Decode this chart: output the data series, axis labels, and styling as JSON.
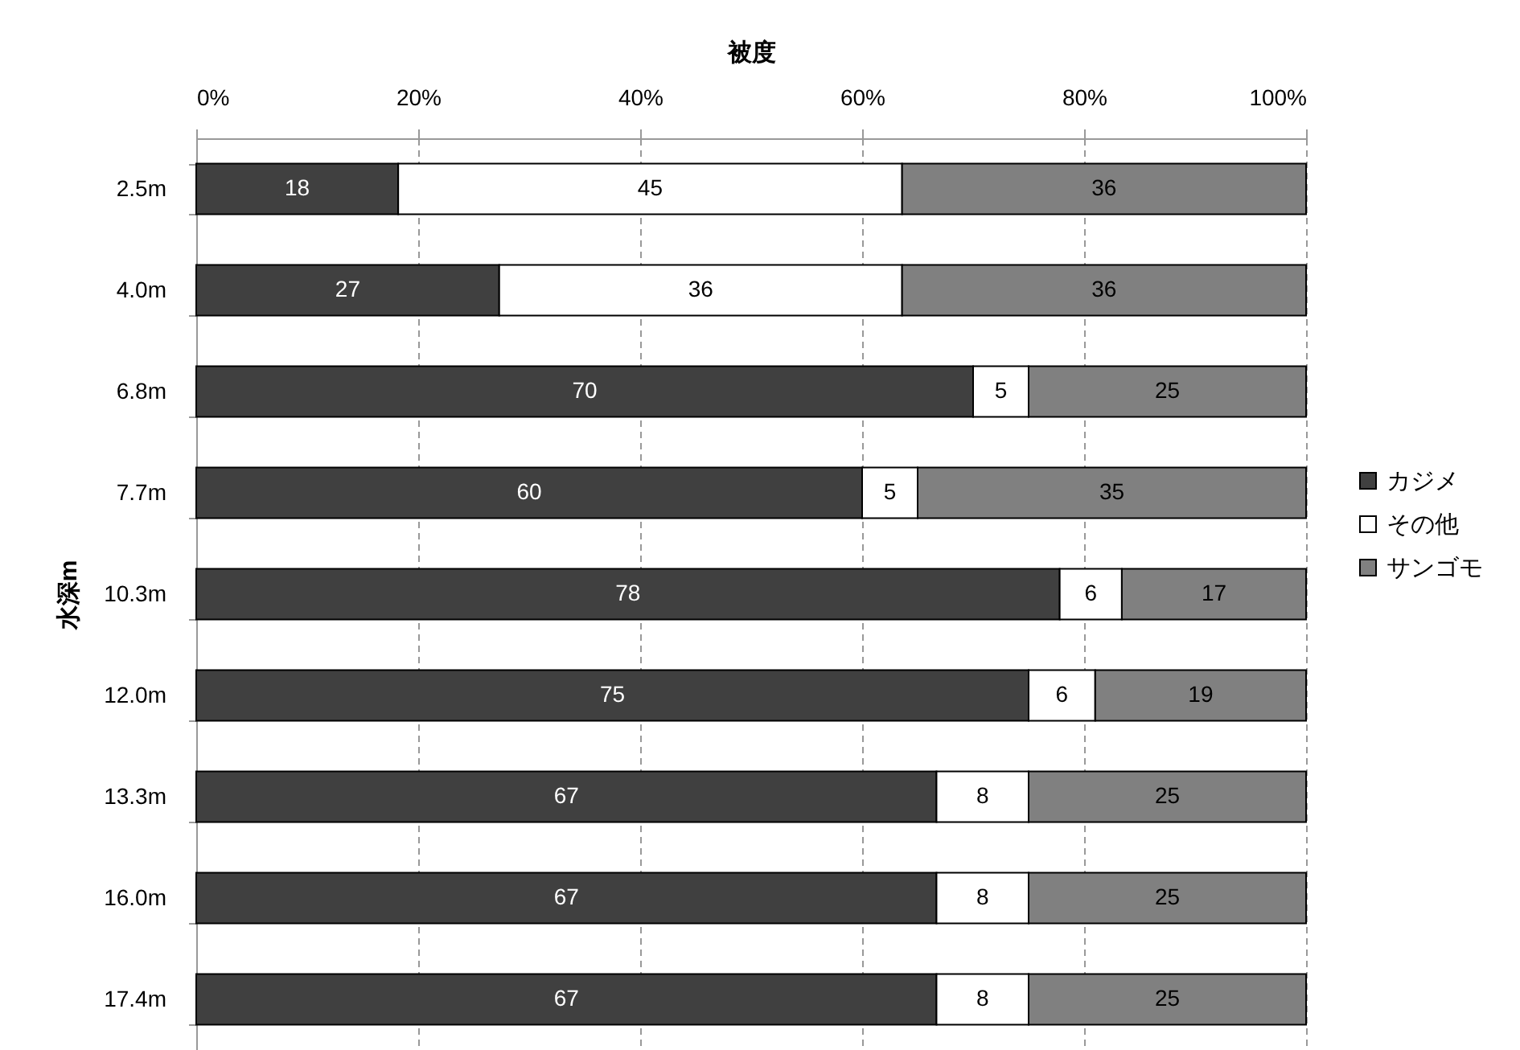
{
  "chart_data": {
    "type": "bar",
    "orientation": "horizontal",
    "stacked": true,
    "xlabel": "被度",
    "ylabel": "水深m",
    "categories": [
      "2.5m",
      "4.0m",
      "6.8m",
      "7.7m",
      "10.3m",
      "12.0m",
      "13.3m",
      "16.0m",
      "17.4m"
    ],
    "series": [
      {
        "name": "カジメ",
        "color": "#404040",
        "values": [
          18.2,
          27.3,
          70,
          60,
          77.8,
          75,
          66.7,
          66.7,
          66.7
        ],
        "value_labels": [
          "18",
          "27",
          "70",
          "60",
          "78",
          "75",
          "67",
          "67",
          "67"
        ]
      },
      {
        "name": "その他",
        "color": "#ffffff",
        "values": [
          45.4,
          36.3,
          5,
          5,
          5.6,
          6,
          8.3,
          8.3,
          8.3
        ],
        "value_labels": [
          "45",
          "36",
          "5",
          "5",
          "6",
          "6",
          "8",
          "8",
          "8"
        ]
      },
      {
        "name": "サンゴモ",
        "color": "#808080",
        "values": [
          36.4,
          36.4,
          25,
          35,
          16.6,
          19,
          25,
          25,
          25
        ],
        "value_labels": [
          "36",
          "36",
          "25",
          "35",
          "17",
          "19",
          "25",
          "25",
          "25"
        ]
      }
    ],
    "xlim": [
      0,
      100
    ],
    "xticks": [
      {
        "value": 0,
        "label": "0%"
      },
      {
        "value": 20,
        "label": "20%"
      },
      {
        "value": 40,
        "label": "40%"
      },
      {
        "value": 60,
        "label": "60%"
      },
      {
        "value": 80,
        "label": "80%"
      },
      {
        "value": 100,
        "label": "100%"
      }
    ],
    "grid": "x",
    "legend": "right"
  }
}
